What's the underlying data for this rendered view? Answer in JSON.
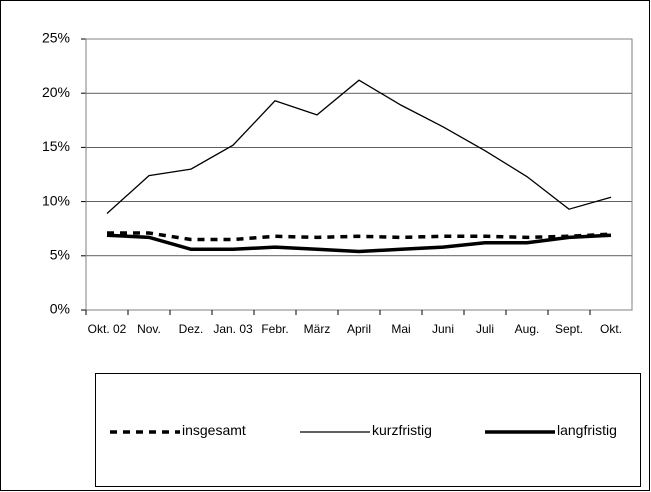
{
  "chart_data": {
    "type": "line",
    "categories": [
      "Okt. 02",
      "Nov.",
      "Dez.",
      "Jan. 03",
      "Febr.",
      "März",
      "April",
      "Mai",
      "Juni",
      "Juli",
      "Aug.",
      "Sept.",
      "Okt."
    ],
    "series": [
      {
        "name": "insgesamt",
        "color": "#000000",
        "line_style": "dashed",
        "line_width": "thick",
        "values": [
          7.1,
          7.1,
          6.5,
          6.5,
          6.8,
          6.7,
          6.8,
          6.7,
          6.8,
          6.8,
          6.7,
          6.8,
          7.0
        ]
      },
      {
        "name": "kurzfristig",
        "color": "#000000",
        "line_style": "solid",
        "line_width": "thin",
        "values": [
          8.9,
          12.4,
          13.0,
          15.2,
          19.3,
          18.0,
          21.2,
          18.9,
          16.9,
          14.7,
          12.3,
          9.3,
          10.4
        ]
      },
      {
        "name": "langfristig",
        "color": "#000000",
        "line_style": "solid",
        "line_width": "thick",
        "values": [
          6.9,
          6.7,
          5.6,
          5.6,
          5.8,
          5.6,
          5.4,
          5.6,
          5.8,
          6.2,
          6.2,
          6.7,
          6.9
        ]
      }
    ],
    "ylim": [
      0,
      25
    ],
    "yticks": [
      {
        "value": 0,
        "label": "0%"
      },
      {
        "value": 5,
        "label": "5%"
      },
      {
        "value": 10,
        "label": "10%"
      },
      {
        "value": 15,
        "label": "15%"
      },
      {
        "value": 20,
        "label": "20%"
      },
      {
        "value": 25,
        "label": "25%"
      }
    ],
    "grid": true,
    "legend": "bottom"
  }
}
